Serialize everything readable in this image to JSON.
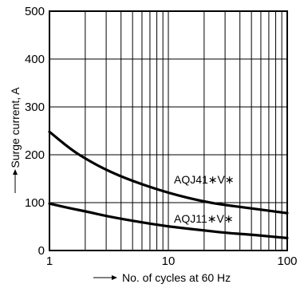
{
  "chart_data": {
    "type": "line",
    "xlabel": "No. of cycles at 60 Hz",
    "ylabel": "Surge current, A",
    "xscale": "log",
    "xlim": [
      1,
      100
    ],
    "ylim": [
      0,
      500
    ],
    "x_ticks": [
      "1",
      "10",
      "100"
    ],
    "y_ticks": [
      "0",
      "100",
      "200",
      "300",
      "400",
      "500"
    ],
    "grid": true,
    "series": [
      {
        "name": "AQJ41∗V∗",
        "x": [
          1,
          1.5,
          2,
          3,
          5,
          10,
          20,
          30,
          50,
          100
        ],
        "y": [
          248,
          212,
          192,
          168,
          145,
          120,
          102,
          95,
          88,
          78
        ]
      },
      {
        "name": "AQJ11∗V∗",
        "x": [
          1,
          1.5,
          2,
          3,
          5,
          10,
          20,
          30,
          50,
          100
        ],
        "y": [
          98,
          88,
          82,
          72,
          62,
          50,
          42,
          37,
          33,
          26
        ]
      }
    ]
  }
}
